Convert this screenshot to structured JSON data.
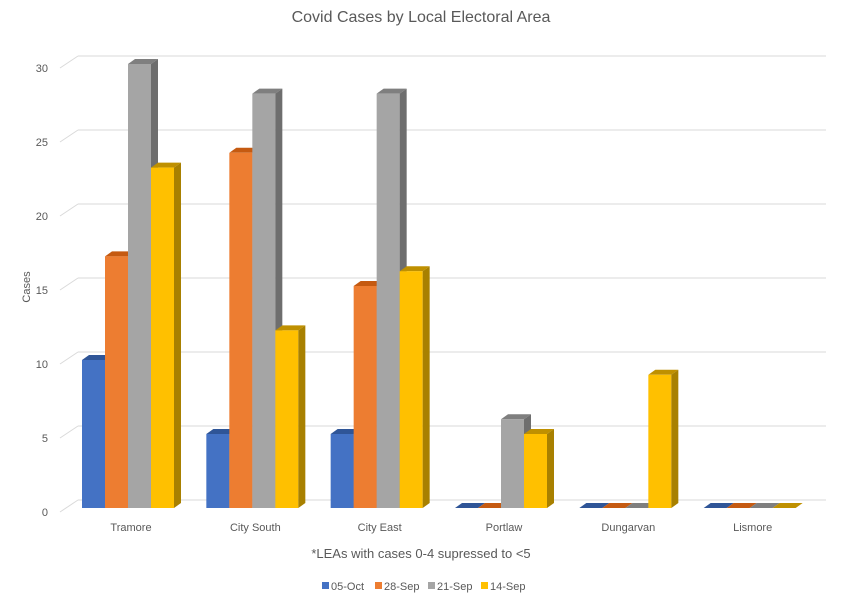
{
  "chart_data": {
    "type": "bar",
    "style": "3d-clustered-column",
    "title": "Covid Cases by Local Electoral Area",
    "xlabel": "",
    "ylabel": "Cases",
    "ylim": [
      0,
      30
    ],
    "yticks": [
      0,
      5,
      10,
      15,
      20,
      25,
      30
    ],
    "grid": true,
    "annotation": "*LEAs with cases 0-4 supressed to <5",
    "legend_position": "bottom",
    "categories": [
      "Tramore",
      "City South",
      "City East",
      "Portlaw",
      "Dungarvan",
      "Lismore"
    ],
    "series": [
      {
        "name": "05-Oct",
        "color": "#4472C4",
        "top": "#2F5597",
        "side": "#2F5597",
        "values": [
          10,
          5,
          5,
          0,
          0,
          0
        ]
      },
      {
        "name": "28-Sep",
        "color": "#ED7D31",
        "top": "#C55A11",
        "side": "#C55A11",
        "values": [
          17,
          24,
          15,
          0,
          0,
          0
        ]
      },
      {
        "name": "21-Sep",
        "color": "#A5A5A5",
        "top": "#7F7F7F",
        "side": "#6E6E6E",
        "values": [
          30,
          28,
          28,
          6,
          0,
          0
        ]
      },
      {
        "name": "14-Sep",
        "color": "#FFC000",
        "top": "#BF9000",
        "side": "#A88000",
        "values": [
          23,
          12,
          16,
          5,
          9,
          0
        ]
      }
    ]
  }
}
